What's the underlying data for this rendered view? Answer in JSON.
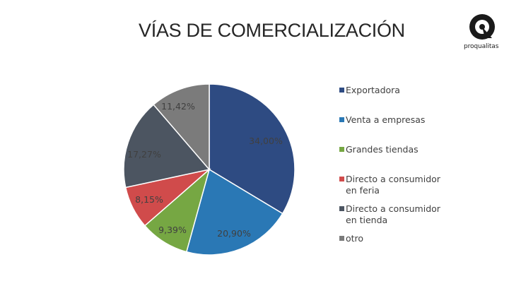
{
  "header": {
    "title": "VÍAS DE COMERCIALIZACIÓN",
    "logo_text": "proqualitas"
  },
  "chart_data": {
    "type": "pie",
    "title": "VÍAS DE COMERCIALIZACIÓN",
    "legend_position": "right",
    "slices": [
      {
        "name": "Exportadora",
        "value": 34.0,
        "label": "34,00%",
        "color": "#2E4B82"
      },
      {
        "name": "Venta a empresas",
        "value": 20.9,
        "label": "20,90%",
        "color": "#2A78B5"
      },
      {
        "name": "Grandes tiendas",
        "value": 9.39,
        "label": "9,39%",
        "color": "#76A743"
      },
      {
        "name": "Directo a consumidor en feria",
        "value": 8.15,
        "label": "8,15%",
        "color": "#D04B4B"
      },
      {
        "name": "Directo a consumidor en tienda",
        "value": 17.27,
        "label": "17,27%",
        "color": "#4C5561"
      },
      {
        "name": "otro",
        "value": 11.42,
        "label": "11,42%",
        "color": "#7B7B7B"
      }
    ]
  }
}
